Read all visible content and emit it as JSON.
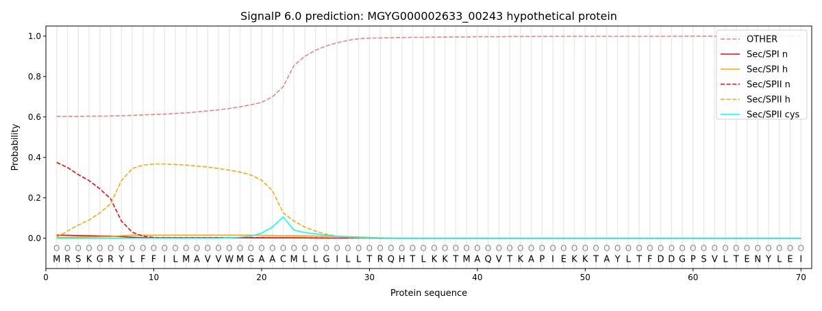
{
  "chart_data": {
    "type": "line",
    "title": "SignalP 6.0 prediction: MGYG000002633_00243 hypothetical protein",
    "xlabel": "Protein sequence",
    "ylabel": "Probability",
    "xlim": [
      0,
      71
    ],
    "ylim": [
      -0.15,
      1.05
    ],
    "xticks": [
      "0",
      "10",
      "20",
      "30",
      "40",
      "50",
      "60",
      "70"
    ],
    "yticks": [
      "0.0",
      "0.2",
      "0.4",
      "0.6",
      "0.8",
      "1.0"
    ],
    "grid": "vertical at each residue",
    "legend_position": "top-right",
    "sequence": [
      "M",
      "R",
      "S",
      "K",
      "G",
      "R",
      "Y",
      "L",
      "F",
      "F",
      "I",
      "L",
      "M",
      "A",
      "V",
      "V",
      "W",
      "M",
      "G",
      "A",
      "A",
      "C",
      "M",
      "L",
      "L",
      "G",
      "I",
      "L",
      "L",
      "T",
      "R",
      "Q",
      "H",
      "T",
      "L",
      "K",
      "K",
      "T",
      "M",
      "A",
      "Q",
      "V",
      "T",
      "K",
      "A",
      "P",
      "I",
      "E",
      "K",
      "K",
      "T",
      "A",
      "Y",
      "L",
      "T",
      "F",
      "D",
      "D",
      "G",
      "P",
      "S",
      "V",
      "L",
      "T",
      "E",
      "N",
      "Y",
      "L",
      "E",
      "I"
    ],
    "annotation_marker": "O",
    "series": [
      {
        "name": "OTHER",
        "color": "#f08080",
        "dash": true,
        "values": [
          0.603,
          0.603,
          0.603,
          0.604,
          0.604,
          0.605,
          0.606,
          0.608,
          0.61,
          0.612,
          0.614,
          0.617,
          0.62,
          0.625,
          0.63,
          0.635,
          0.642,
          0.65,
          0.66,
          0.672,
          0.7,
          0.75,
          0.855,
          0.9,
          0.93,
          0.952,
          0.967,
          0.979,
          0.987,
          0.99,
          0.991,
          0.992,
          0.993,
          0.994,
          0.994,
          0.995,
          0.995,
          0.996,
          0.996,
          0.997,
          0.997,
          0.997,
          0.998,
          0.998,
          0.998,
          0.998,
          0.999,
          0.999,
          0.999,
          0.999,
          0.999,
          0.999,
          0.999,
          0.999,
          0.999,
          0.999,
          0.999,
          0.999,
          1.0,
          1.0,
          1.0,
          1.0,
          1.0,
          1.0,
          1.0,
          1.0,
          1.0,
          1.0,
          1.0,
          1.0
        ]
      },
      {
        "name": "Sec/SPI n",
        "color": "#ff0000",
        "dash": false,
        "values": [
          0.015,
          0.014,
          0.013,
          0.012,
          0.011,
          0.01,
          0.008,
          0.005,
          0.003,
          0.002,
          0.002,
          0.002,
          0.002,
          0.002,
          0.002,
          0.002,
          0.002,
          0.002,
          0.002,
          0.002,
          0.002,
          0.002,
          0.002,
          0.002,
          0.001,
          0.001,
          0.001,
          0.001,
          0.001,
          0.001,
          0,
          0,
          0,
          0,
          0,
          0,
          0,
          0,
          0,
          0,
          0,
          0,
          0,
          0,
          0,
          0,
          0,
          0,
          0,
          0,
          0,
          0,
          0,
          0,
          0,
          0,
          0,
          0,
          0,
          0,
          0,
          0,
          0,
          0,
          0,
          0,
          0,
          0,
          0,
          0
        ]
      },
      {
        "name": "Sec/SPI h",
        "color": "#ffa500",
        "dash": false,
        "values": [
          0.003,
          0.004,
          0.005,
          0.006,
          0.007,
          0.008,
          0.012,
          0.015,
          0.015,
          0.015,
          0.015,
          0.015,
          0.015,
          0.015,
          0.015,
          0.015,
          0.015,
          0.015,
          0.015,
          0.014,
          0.013,
          0.012,
          0.012,
          0.012,
          0.011,
          0.01,
          0.009,
          0.008,
          0.006,
          0.004,
          0.002,
          0.001,
          0,
          0,
          0,
          0,
          0,
          0,
          0,
          0,
          0,
          0,
          0,
          0,
          0,
          0,
          0,
          0,
          0,
          0,
          0,
          0,
          0,
          0,
          0,
          0,
          0,
          0,
          0,
          0,
          0,
          0,
          0,
          0,
          0,
          0,
          0,
          0,
          0,
          0
        ]
      },
      {
        "name": "Sec/SPII n",
        "color": "#ff0000",
        "dash": true,
        "values": [
          0.375,
          0.35,
          0.315,
          0.285,
          0.245,
          0.195,
          0.085,
          0.03,
          0.01,
          0.004,
          0.003,
          0.003,
          0.003,
          0.003,
          0.003,
          0.003,
          0.003,
          0.003,
          0.003,
          0.003,
          0.002,
          0.002,
          0.002,
          0.002,
          0.002,
          0.001,
          0.001,
          0.001,
          0.001,
          0.001,
          0,
          0,
          0,
          0,
          0,
          0,
          0,
          0,
          0,
          0,
          0,
          0,
          0,
          0,
          0,
          0,
          0,
          0,
          0,
          0,
          0,
          0,
          0,
          0,
          0,
          0,
          0,
          0,
          0,
          0,
          0,
          0,
          0,
          0,
          0,
          0,
          0,
          0,
          0,
          0
        ]
      },
      {
        "name": "Sec/SPII h",
        "color": "#ffa500",
        "dash": true,
        "values": [
          0.005,
          0.035,
          0.065,
          0.09,
          0.125,
          0.17,
          0.285,
          0.345,
          0.362,
          0.367,
          0.367,
          0.365,
          0.362,
          0.357,
          0.352,
          0.345,
          0.337,
          0.327,
          0.313,
          0.287,
          0.235,
          0.125,
          0.085,
          0.055,
          0.035,
          0.02,
          0.01,
          0.005,
          0.003,
          0.002,
          0.001,
          0.001,
          0,
          0,
          0,
          0,
          0,
          0,
          0,
          0,
          0,
          0,
          0,
          0,
          0,
          0,
          0,
          0,
          0,
          0,
          0,
          0,
          0,
          0,
          0,
          0,
          0,
          0,
          0,
          0,
          0,
          0,
          0,
          0,
          0,
          0,
          0,
          0,
          0,
          0
        ]
      },
      {
        "name": "Sec/SPII cys",
        "color": "#00ffff",
        "dash": false,
        "values": [
          0,
          0,
          0,
          0,
          0,
          0,
          0,
          0,
          0,
          0,
          0,
          0,
          0,
          0,
          0,
          0,
          0.002,
          0.005,
          0.01,
          0.025,
          0.055,
          0.105,
          0.04,
          0.028,
          0.022,
          0.015,
          0.01,
          0.005,
          0.003,
          0.002,
          0.001,
          0,
          0,
          0,
          0,
          0,
          0,
          0,
          0,
          0,
          0,
          0,
          0,
          0,
          0,
          0,
          0,
          0,
          0,
          0,
          0,
          0,
          0,
          0,
          0,
          0,
          0,
          0,
          0,
          0,
          0,
          0,
          0,
          0,
          0,
          0,
          0,
          0,
          0,
          0
        ]
      }
    ]
  }
}
